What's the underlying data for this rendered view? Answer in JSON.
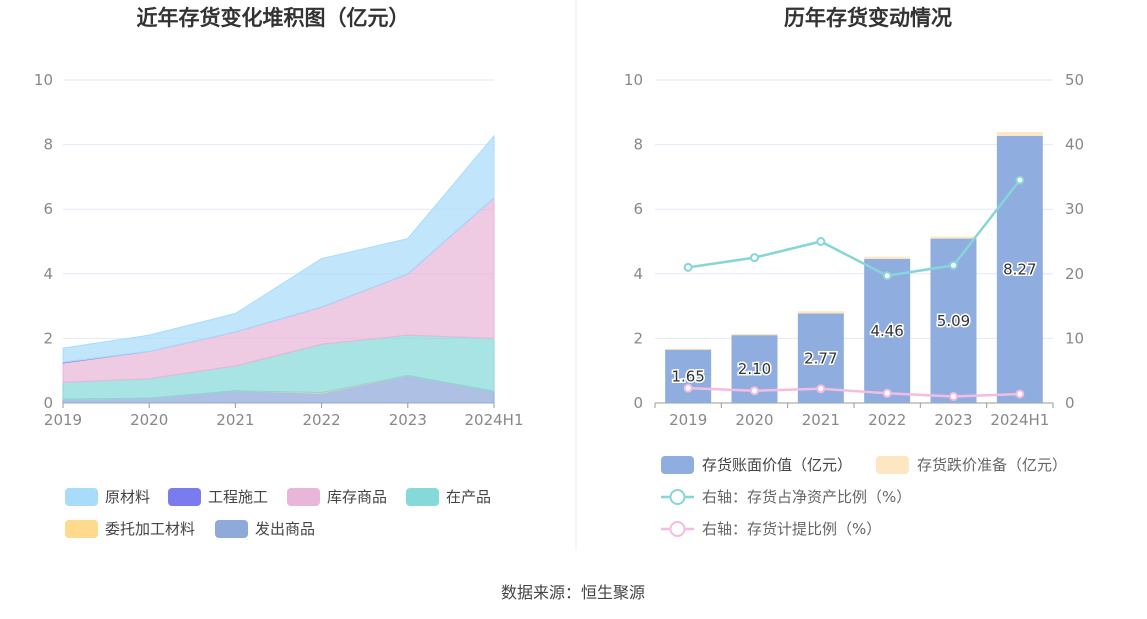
{
  "source_label": "数据来源：恒生聚源",
  "chart_data": [
    {
      "type": "area",
      "stacked": true,
      "title": "近年存货变化堆积图（亿元）",
      "categories": [
        "2019",
        "2020",
        "2021",
        "2022",
        "2023",
        "2024H1"
      ],
      "ylim": [
        0,
        10
      ],
      "yticks": [
        0,
        2,
        4,
        6,
        8,
        10
      ],
      "grid": true,
      "legend_position": "bottom",
      "series": [
        {
          "name": "发出商品",
          "color": "#8fa9d9",
          "values": [
            0.12,
            0.15,
            0.38,
            0.3,
            0.85,
            0.37
          ]
        },
        {
          "name": "委托加工材料",
          "color": "#ffd98c",
          "values": [
            0.0,
            0.0,
            0.0,
            0.02,
            0.0,
            0.0
          ]
        },
        {
          "name": "在产品",
          "color": "#86d9d9",
          "values": [
            0.52,
            0.6,
            0.77,
            1.5,
            1.25,
            1.63
          ]
        },
        {
          "name": "库存商品",
          "color": "#e8b6d8",
          "values": [
            0.6,
            0.85,
            1.05,
            1.15,
            1.9,
            4.35
          ]
        },
        {
          "name": "工程施工",
          "color": "#7b7bf0",
          "values": [
            0.02,
            0.0,
            0.0,
            0.0,
            0.0,
            0.0
          ]
        },
        {
          "name": "原材料",
          "color": "#a9dcfa",
          "values": [
            0.44,
            0.5,
            0.57,
            1.5,
            1.09,
            1.92
          ]
        }
      ],
      "legend_order": [
        "原材料",
        "工程施工",
        "库存商品",
        "在产品",
        "委托加工材料",
        "发出商品"
      ]
    },
    {
      "type": "bar",
      "title": "历年存货变动情况",
      "categories": [
        "2019",
        "2020",
        "2021",
        "2022",
        "2023",
        "2024H1"
      ],
      "ylim": [
        0,
        10
      ],
      "yticks": [
        0,
        2,
        4,
        6,
        8,
        10
      ],
      "y2lim": [
        0,
        50
      ],
      "y2ticks": [
        0,
        10,
        20,
        30,
        40,
        50
      ],
      "grid": true,
      "legend_position": "bottom",
      "bar_series": [
        {
          "name": "存货账面价值（亿元）",
          "color": "#8fadde",
          "values": [
            1.65,
            2.1,
            2.77,
            4.46,
            5.09,
            8.27
          ],
          "labels": [
            "1.65",
            "2.10",
            "2.77",
            "4.46",
            "5.09",
            "8.27"
          ]
        },
        {
          "name": "存货跌价准备（亿元）",
          "color": "#fde6c2",
          "values": [
            0.03,
            0.04,
            0.07,
            0.07,
            0.06,
            0.12
          ]
        }
      ],
      "line_series": [
        {
          "name": "右轴：存货占净资产比例（%）",
          "color": "#86d5d8",
          "values": [
            21.0,
            22.5,
            25.0,
            19.7,
            21.3,
            34.5
          ]
        },
        {
          "name": "右轴：存货计提比例（%）",
          "color": "#f2bde0",
          "values": [
            2.3,
            1.9,
            2.2,
            1.5,
            1.0,
            1.4
          ]
        }
      ]
    }
  ]
}
